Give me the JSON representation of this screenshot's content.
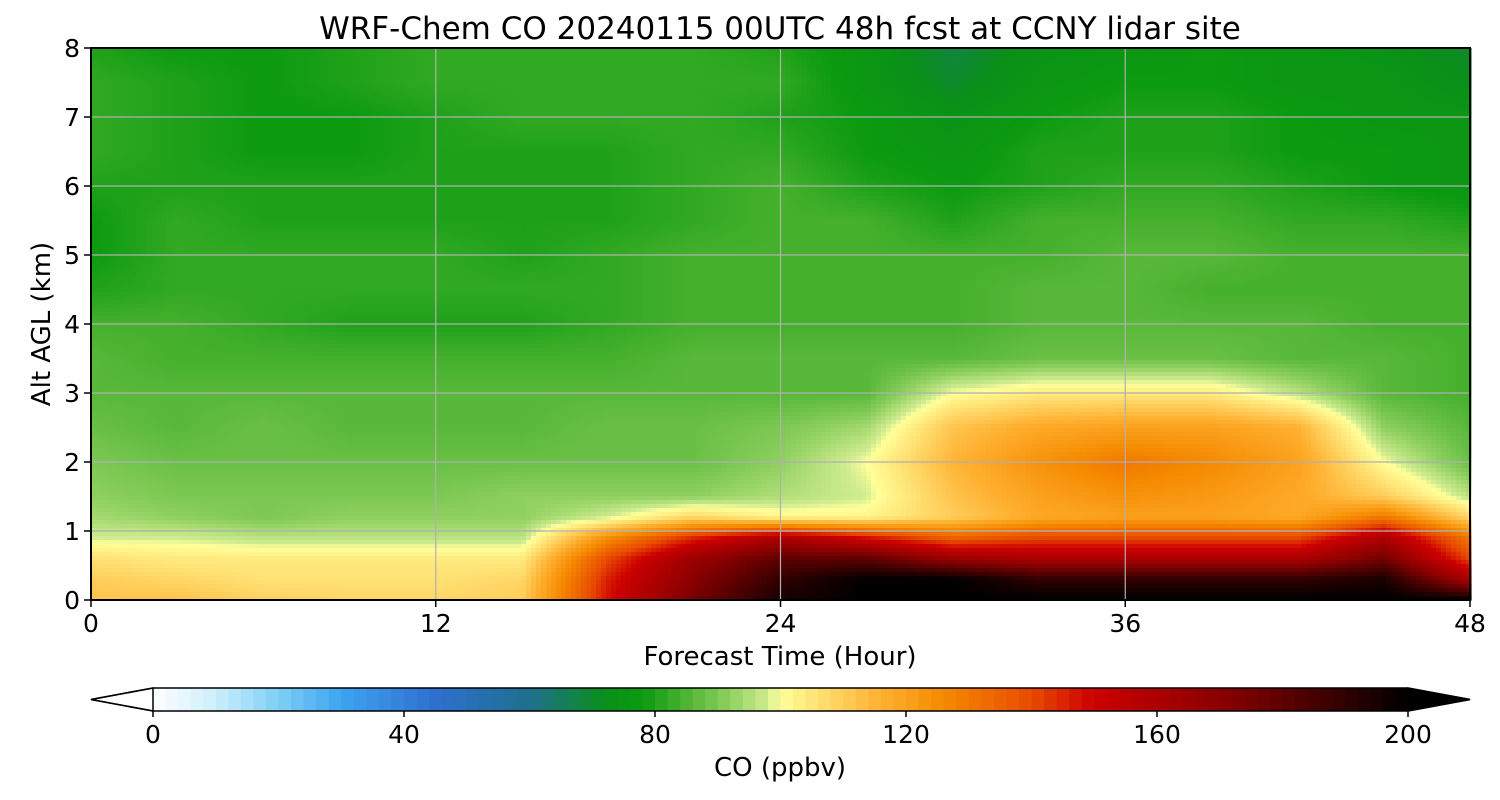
{
  "chart_data": {
    "type": "heatmap",
    "title": "WRF-Chem CO  20240115 00UTC 48h fcst at CCNY lidar site",
    "xlabel": "Forecast Time (Hour)",
    "ylabel": "Alt AGL (km)",
    "xlim": [
      0,
      48
    ],
    "ylim": [
      0,
      8
    ],
    "xticks": [
      0,
      12,
      24,
      36,
      48
    ],
    "yticks": [
      0,
      1,
      2,
      3,
      4,
      5,
      6,
      7,
      8
    ],
    "grid": true,
    "colorbar": {
      "label": "CO  (ppbv)",
      "range": [
        0,
        200
      ],
      "ticks": [
        0,
        40,
        80,
        120,
        160,
        200
      ],
      "extend": "both",
      "stops": [
        {
          "v": 0,
          "c": "#ffffff"
        },
        {
          "v": 10,
          "c": "#cdeefb"
        },
        {
          "v": 20,
          "c": "#7dcff6"
        },
        {
          "v": 30,
          "c": "#3ea3f0"
        },
        {
          "v": 45,
          "c": "#2f6fd0"
        },
        {
          "v": 60,
          "c": "#1f6f8f"
        },
        {
          "v": 72,
          "c": "#0a8f1a"
        },
        {
          "v": 78,
          "c": "#0b9a10"
        },
        {
          "v": 84,
          "c": "#45b02c"
        },
        {
          "v": 92,
          "c": "#8fd060"
        },
        {
          "v": 98,
          "c": "#d0ec90"
        },
        {
          "v": 100,
          "c": "#ffff99"
        },
        {
          "v": 108,
          "c": "#ffd767"
        },
        {
          "v": 116,
          "c": "#ffb030"
        },
        {
          "v": 126,
          "c": "#f58a00"
        },
        {
          "v": 140,
          "c": "#e84a00"
        },
        {
          "v": 150,
          "c": "#cc0000"
        },
        {
          "v": 170,
          "c": "#8a0000"
        },
        {
          "v": 188,
          "c": "#3a0000"
        },
        {
          "v": 200,
          "c": "#000000"
        }
      ]
    },
    "grid_data": {
      "x_step_hours": 3,
      "y_levels_km": [
        0,
        0.3,
        0.6,
        0.9,
        1.2,
        1.5,
        2,
        2.5,
        3,
        3.5,
        4,
        4.5,
        5,
        5.5,
        6,
        6.5,
        7,
        7.5,
        8
      ],
      "values": [
        [
          112,
          112,
          109,
          108,
          108,
          110,
          148,
          175,
          195,
          200,
          200,
          200,
          200,
          200,
          200,
          200,
          200
        ],
        [
          110,
          108,
          106,
          106,
          106,
          108,
          146,
          170,
          190,
          200,
          200,
          190,
          190,
          190,
          190,
          195,
          160
        ],
        [
          106,
          104,
          104,
          104,
          104,
          104,
          140,
          165,
          180,
          180,
          165,
          160,
          160,
          160,
          160,
          175,
          140
        ],
        [
          98,
          98,
          96,
          96,
          96,
          96,
          125,
          145,
          160,
          148,
          135,
          140,
          140,
          140,
          140,
          160,
          130
        ],
        [
          94,
          92,
          90,
          92,
          92,
          92,
          98,
          108,
          102,
          102,
          110,
          118,
          120,
          120,
          118,
          130,
          108
        ],
        [
          92,
          90,
          90,
          90,
          90,
          92,
          92,
          92,
          95,
          98,
          112,
          120,
          124,
          122,
          118,
          110,
          96
        ],
        [
          90,
          88,
          88,
          88,
          88,
          88,
          88,
          88,
          92,
          100,
          115,
          124,
          130,
          126,
          120,
          100,
          88
        ],
        [
          88,
          86,
          88,
          86,
          86,
          86,
          88,
          88,
          90,
          94,
          112,
          118,
          120,
          120,
          116,
          92,
          86
        ],
        [
          86,
          86,
          86,
          86,
          86,
          86,
          86,
          86,
          86,
          86,
          100,
          104,
          104,
          104,
          96,
          86,
          84
        ],
        [
          86,
          84,
          84,
          84,
          84,
          84,
          84,
          86,
          86,
          86,
          86,
          88,
          88,
          88,
          86,
          86,
          84
        ],
        [
          84,
          84,
          82,
          80,
          80,
          80,
          82,
          84,
          84,
          84,
          84,
          86,
          86,
          86,
          86,
          84,
          84
        ],
        [
          80,
          82,
          82,
          82,
          82,
          82,
          82,
          84,
          84,
          84,
          84,
          86,
          86,
          84,
          84,
          84,
          84
        ],
        [
          78,
          82,
          82,
          82,
          82,
          80,
          82,
          84,
          84,
          84,
          84,
          84,
          86,
          86,
          84,
          84,
          84
        ],
        [
          78,
          82,
          80,
          80,
          80,
          80,
          80,
          82,
          84,
          84,
          80,
          84,
          84,
          84,
          82,
          82,
          80
        ],
        [
          80,
          80,
          80,
          80,
          80,
          80,
          80,
          82,
          84,
          80,
          78,
          80,
          82,
          82,
          80,
          78,
          76
        ],
        [
          82,
          80,
          78,
          78,
          80,
          80,
          80,
          82,
          82,
          78,
          76,
          80,
          80,
          80,
          78,
          78,
          76
        ],
        [
          82,
          80,
          78,
          78,
          80,
          82,
          82,
          82,
          80,
          78,
          74,
          78,
          80,
          80,
          78,
          76,
          76
        ],
        [
          82,
          80,
          78,
          80,
          82,
          82,
          82,
          82,
          82,
          76,
          70,
          76,
          78,
          78,
          76,
          76,
          72
        ],
        [
          80,
          78,
          78,
          80,
          82,
          82,
          82,
          82,
          80,
          76,
          68,
          74,
          76,
          78,
          76,
          74,
          70
        ]
      ]
    }
  }
}
